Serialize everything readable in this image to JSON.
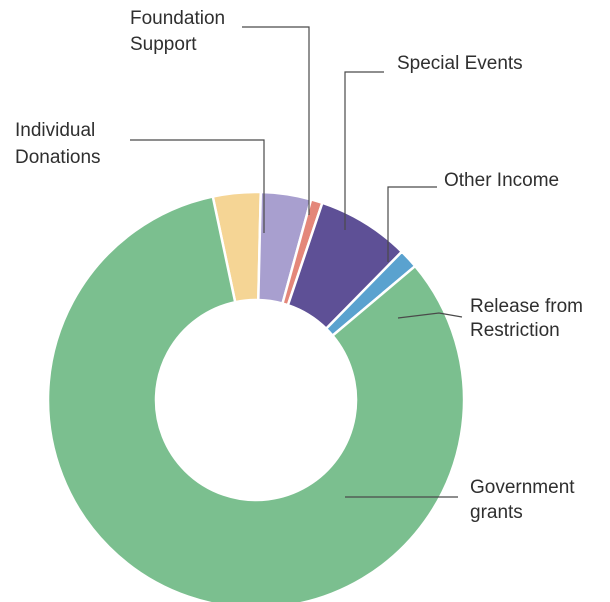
{
  "chart_data": {
    "type": "pie",
    "categories": [
      "Individual Donations",
      "Foundation Support",
      "Special Events",
      "Other Income",
      "Release from Restriction",
      "Government grants"
    ],
    "values": [
      3.7,
      3.9,
      0.9,
      7.2,
      1.5,
      82.8
    ],
    "colors": [
      "#f5d595",
      "#a89fcf",
      "#e4877a",
      "#5e5096",
      "#5aa2cf",
      "#7bbf8f"
    ],
    "legend": "leader-line labels",
    "label_lines": [
      [
        "Individual",
        "Donations"
      ],
      [
        "Foundation",
        "Support"
      ],
      [
        "Special Events"
      ],
      [
        "Other Income"
      ],
      [
        "Release from",
        "Restriction"
      ],
      [
        "Government",
        "grants"
      ]
    ]
  }
}
